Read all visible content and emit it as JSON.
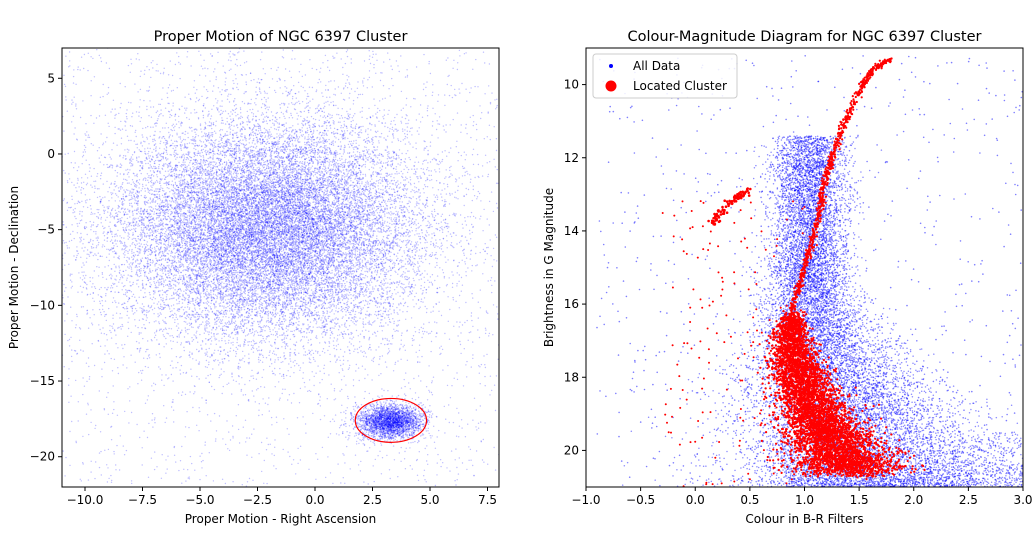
{
  "chart_data": [
    {
      "type": "scatter",
      "title": "Proper Motion of NGC 6397 Cluster",
      "xlabel": "Proper Motion - Right Ascension",
      "ylabel": "Proper Motion - Declination",
      "xlim": [
        -11,
        8
      ],
      "ylim": [
        -22,
        7
      ],
      "xticks": [
        -10.0,
        -7.5,
        -5.0,
        -2.5,
        0.0,
        2.5,
        5.0,
        7.5
      ],
      "xtick_labels": [
        "−10.0",
        "−7.5",
        "−5.0",
        "−2.5",
        "0.0",
        "2.5",
        "5.0",
        "7.5"
      ],
      "yticks": [
        5,
        0,
        -5,
        -10,
        -15,
        -20
      ],
      "ytick_labels": [
        "5",
        "0",
        "−5",
        "−10",
        "−15",
        "−20"
      ],
      "grid": false,
      "series": [
        {
          "kind": "gaussian-cloud",
          "color": "#0000ff",
          "clouds": [
            {
              "center": [
                -2.0,
                -5.0
              ],
              "sigma": [
                3.3,
                3.6
              ],
              "weight": 0.88
            },
            {
              "center": [
                3.3,
                -17.7
              ],
              "sigma": [
                0.7,
                0.55
              ],
              "weight": 0.12
            }
          ]
        }
      ],
      "annotations": [
        {
          "type": "ellipse",
          "center": [
            3.3,
            -17.6
          ],
          "radii": [
            1.55,
            1.45
          ],
          "color": "#ff0000"
        }
      ]
    },
    {
      "type": "scatter",
      "title": "Colour-Magnitude Diagram for NGC 6397 Cluster",
      "xlabel": "Colour in B-R Filters",
      "ylabel": "Brightness in G Magnitude",
      "xlim": [
        -1.0,
        3.0
      ],
      "ylim": [
        21.0,
        9.0
      ],
      "y_inverted": true,
      "xticks": [
        -1.0,
        -0.5,
        0.0,
        0.5,
        1.0,
        1.5,
        2.0,
        2.5,
        3.0
      ],
      "xtick_labels": [
        "−1.0",
        "−0.5",
        "0.0",
        "0.5",
        "1.0",
        "1.5",
        "2.0",
        "2.5",
        "3.0"
      ],
      "yticks": [
        10,
        12,
        14,
        16,
        18,
        20
      ],
      "ytick_labels": [
        "10",
        "12",
        "14",
        "16",
        "18",
        "20"
      ],
      "grid": false,
      "legend_position": "top-left",
      "series": [
        {
          "name": "All Data",
          "color": "#0000ff",
          "kind": "field-population",
          "note_points": [
            [
              0.8,
              15.0
            ],
            [
              1.2,
              15.5
            ],
            [
              1.5,
              18.5
            ],
            [
              2.3,
              19.5
            ],
            [
              1.0,
              20.5
            ],
            [
              0.6,
              21.0
            ]
          ]
        },
        {
          "name": "Located Cluster",
          "color": "#ff0000",
          "kind": "cluster-sequence",
          "rgb_branch": [
            [
              0.87,
              16.2
            ],
            [
              0.95,
              15.5
            ],
            [
              1.03,
              14.7
            ],
            [
              1.1,
              14.0
            ],
            [
              1.15,
              13.2
            ],
            [
              1.2,
              12.5
            ],
            [
              1.27,
              11.8
            ],
            [
              1.37,
              11.0
            ],
            [
              1.5,
              10.2
            ],
            [
              1.62,
              9.6
            ],
            [
              1.78,
              9.3
            ]
          ],
          "main_sequence": [
            [
              0.9,
              16.3
            ],
            [
              0.88,
              16.8
            ],
            [
              0.9,
              17.4
            ],
            [
              0.97,
              18.0
            ],
            [
              1.05,
              18.6
            ],
            [
              1.15,
              19.2
            ],
            [
              1.25,
              19.7
            ],
            [
              1.35,
              20.2
            ],
            [
              1.42,
              20.6
            ]
          ],
          "horizontal_branch": [
            [
              0.15,
              13.8
            ],
            [
              0.22,
              13.55
            ],
            [
              0.3,
              13.25
            ],
            [
              0.4,
              13.05
            ],
            [
              0.5,
              12.9
            ]
          ]
        }
      ]
    }
  ]
}
